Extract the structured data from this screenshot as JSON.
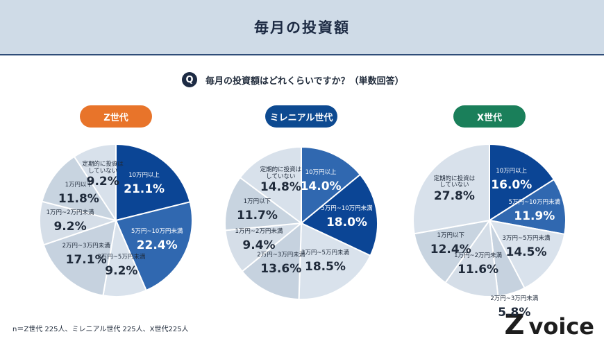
{
  "header": {
    "title": "毎月の投資額"
  },
  "question": {
    "icon": "Q",
    "text": "毎月の投資額はどれくらいですか？（単数回答）"
  },
  "chart_data": [
    {
      "type": "pie",
      "title": "Z世代",
      "title_color": "#e8742a",
      "categories": [
        "10万円以上",
        "5万円~10万円未満",
        "3万円~5万円未満",
        "2万円~3万円未満",
        "1万円~2万円未満",
        "1万円以下",
        "定期的に投資は\nしていない"
      ],
      "values": [
        21.1,
        22.4,
        9.2,
        17.1,
        9.2,
        11.8,
        9.2
      ],
      "value_labels": [
        "21.1%",
        "22.4%",
        "9.2%",
        "17.1%",
        "9.2%",
        "11.8%",
        "9.2%"
      ],
      "colors": [
        "#0b4595",
        "#3068b0",
        "#d9e2ec",
        "#c6d2df",
        "#d5dee8",
        "#c8d4e0",
        "#d8e1eb"
      ]
    },
    {
      "type": "pie",
      "title": "ミレニアル世代",
      "title_color": "#0d4a91",
      "categories": [
        "10万円以上",
        "5万円~10万円未満",
        "3万円~5万円未満",
        "2万円~3万円未満",
        "1万円~2万円未満",
        "1万円以下",
        "定期的に投資は\nしていない"
      ],
      "values": [
        14.0,
        18.0,
        18.5,
        13.6,
        9.4,
        11.7,
        14.8
      ],
      "value_labels": [
        "14.0%",
        "18.0%",
        "18.5%",
        "13.6%",
        "9.4%",
        "11.7%",
        "14.8%"
      ],
      "colors": [
        "#3068b0",
        "#0b4595",
        "#d9e2ec",
        "#c6d2df",
        "#d5dee8",
        "#c8d4e0",
        "#d8e1eb"
      ]
    },
    {
      "type": "pie",
      "title": "X世代",
      "title_color": "#1a7f5a",
      "categories": [
        "10万円以上",
        "5万円~10万円未満",
        "3万円~5万円未満",
        "2万円~3万円未満",
        "1万円~2万円未満",
        "1万円以下",
        "定期的に投資は\nしていない"
      ],
      "values": [
        16.0,
        11.9,
        14.5,
        5.8,
        11.6,
        12.4,
        27.8
      ],
      "value_labels": [
        "16.0%",
        "11.9%",
        "14.5%",
        "5.8%",
        "11.6%",
        "12.4%",
        "27.8%"
      ],
      "colors": [
        "#0b4595",
        "#3068b0",
        "#d9e2ec",
        "#c6d2df",
        "#d5dee8",
        "#c8d4e0",
        "#d8e1eb"
      ]
    }
  ],
  "note": "n＝Z世代 225人、ミレニアル世代 225人、X世代225人",
  "logo": {
    "mark": "Z",
    "text": "voice"
  }
}
